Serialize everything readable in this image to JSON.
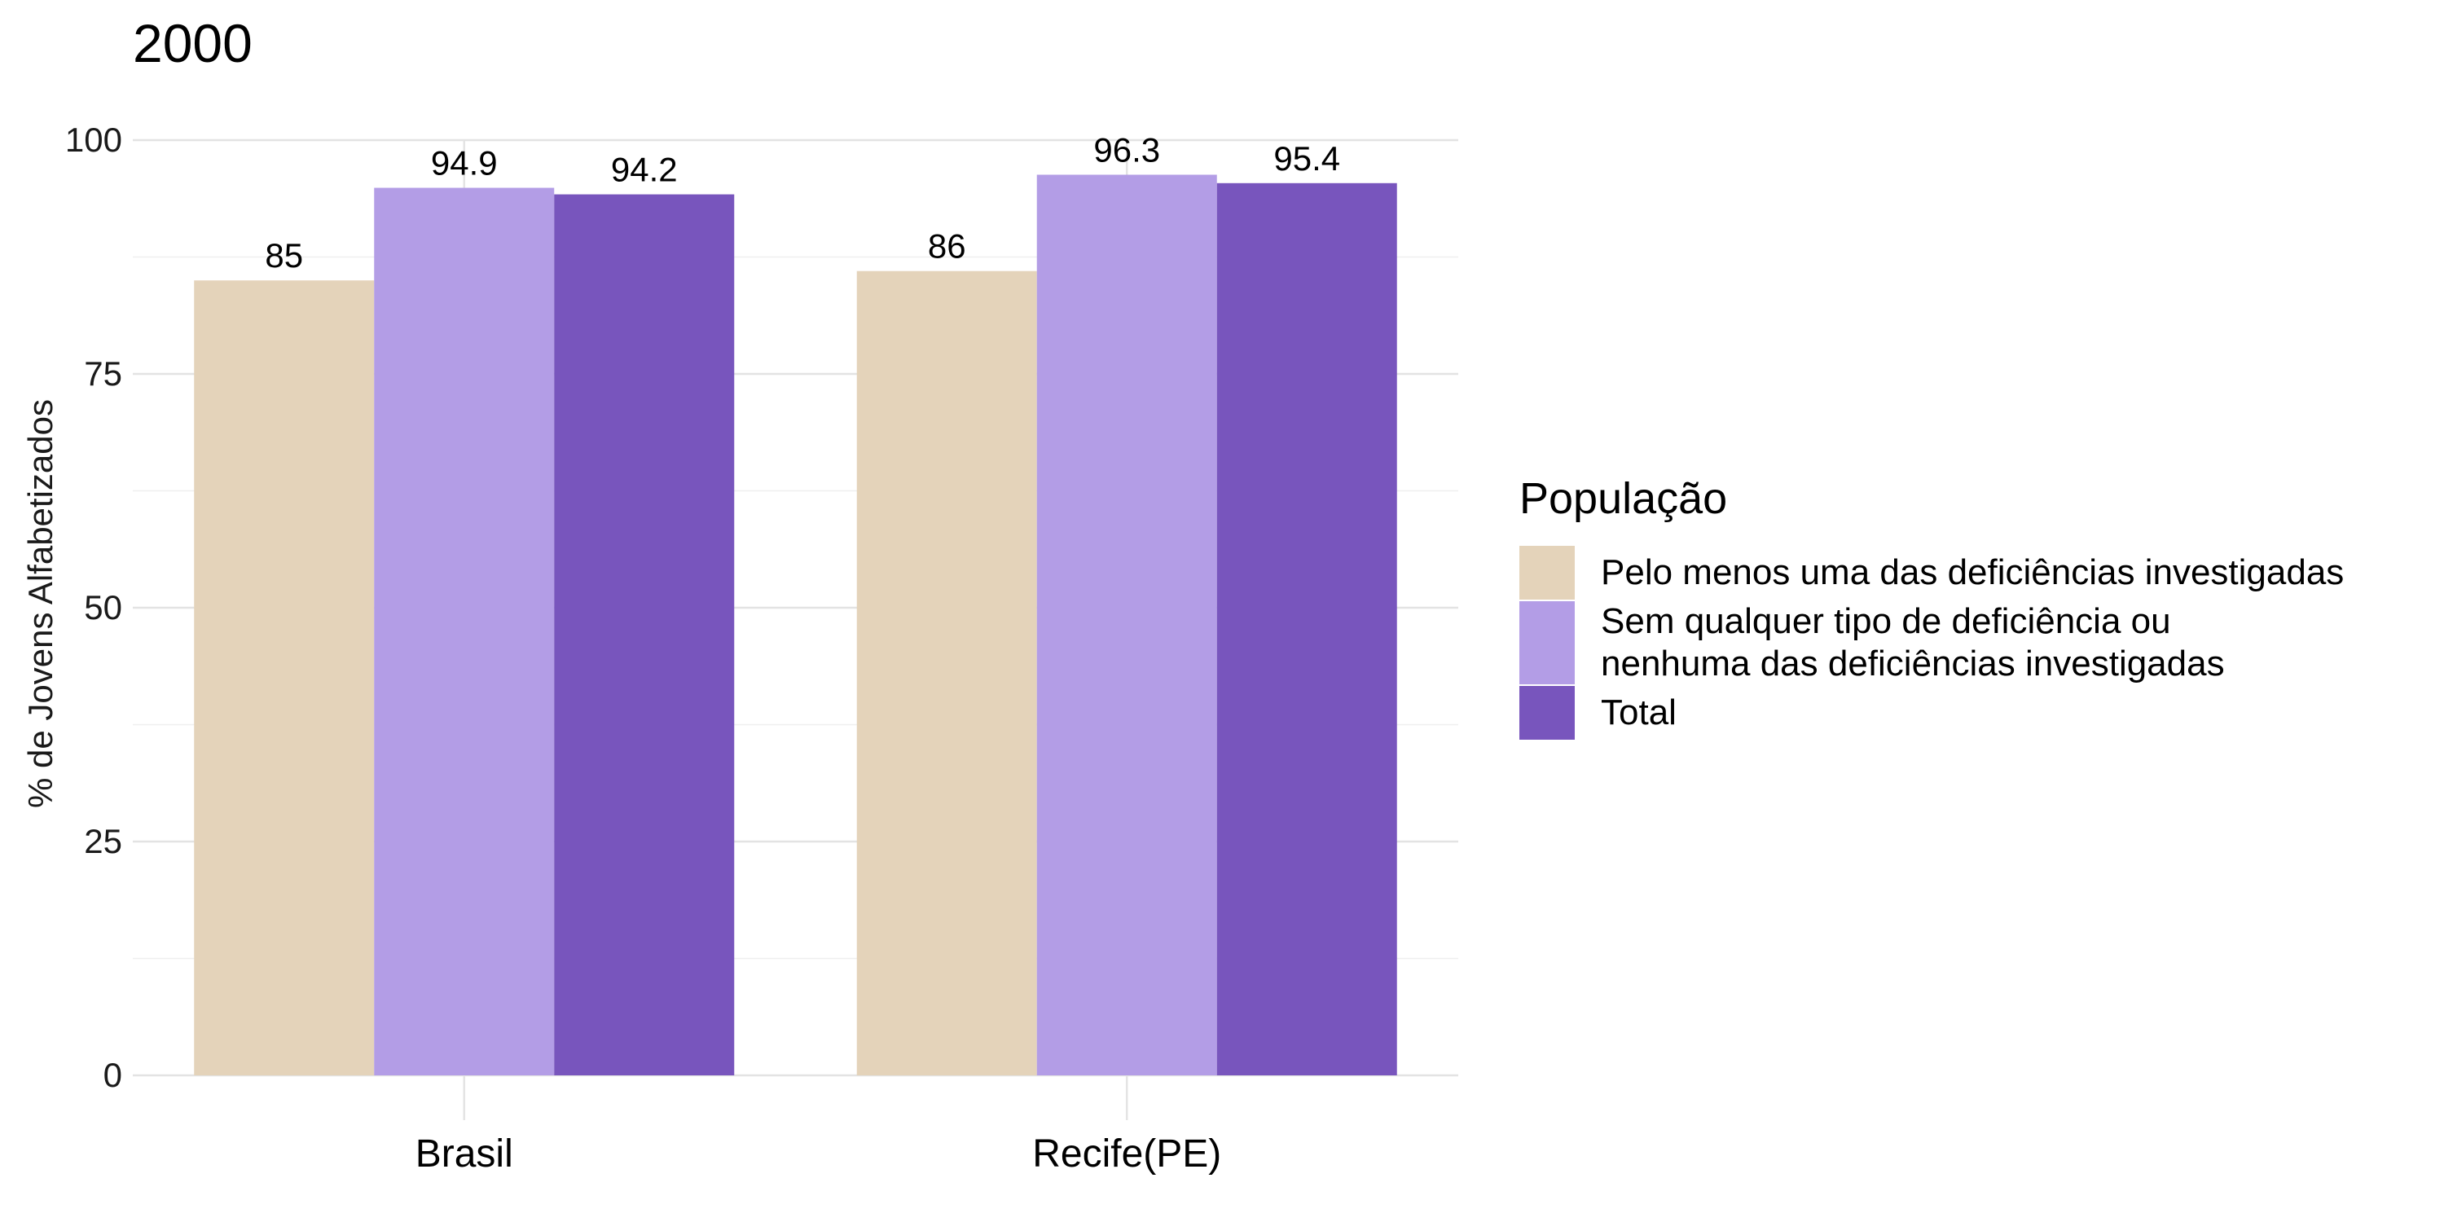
{
  "chart_data": {
    "type": "bar",
    "title": "2000",
    "ylabel": "% de Jovens Alfabetizados",
    "xlabel": "",
    "categories": [
      "Brasil",
      "Recife(PE)"
    ],
    "ylim": [
      0,
      100
    ],
    "yticks": [
      0,
      25,
      50,
      75,
      100
    ],
    "grid": true,
    "legend": {
      "title": "População",
      "placement": "right"
    },
    "series": [
      {
        "name": "Pelo menos uma das deficiências investigadas",
        "name_lines": [
          "Pelo menos uma das deficiências investigadas"
        ],
        "color": "#E4D3BA",
        "values": [
          85,
          86
        ],
        "labels": [
          "85",
          "86"
        ]
      },
      {
        "name": "Sem qualquer tipo de deficiência ou nenhuma das deficiências investigadas",
        "name_lines": [
          "Sem qualquer tipo de deficiência ou",
          "nenhuma das deficiências investigadas"
        ],
        "color": "#B39DE6",
        "values": [
          94.9,
          96.3
        ],
        "labels": [
          "94.9",
          "96.3"
        ]
      },
      {
        "name": "Total",
        "name_lines": [
          "Total"
        ],
        "color": "#7855BD",
        "values": [
          94.2,
          95.4
        ],
        "labels": [
          "94.2",
          "95.4"
        ]
      }
    ]
  }
}
